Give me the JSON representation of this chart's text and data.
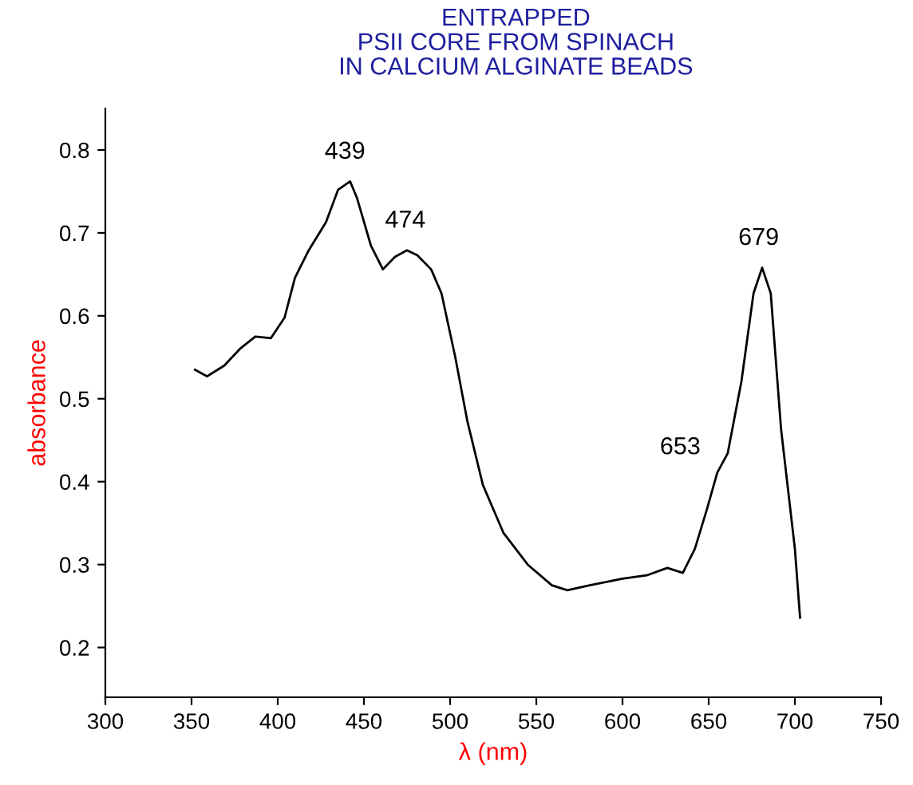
{
  "chart_data": {
    "type": "line",
    "title": "ENTRAPPED\nPSII CORE FROM SPINACH\nIN CALCIUM ALGINATE BEADS",
    "xlabel": "λ (nm)",
    "ylabel": "absorbance",
    "series": [
      {
        "color": "#000000",
        "x": [
          352,
          359,
          369,
          378,
          387,
          396,
          404,
          410,
          418,
          428,
          435,
          442,
          446,
          454,
          461,
          468,
          475,
          481,
          489,
          495,
          503,
          510,
          519,
          531,
          545,
          559,
          568,
          581,
          600,
          614,
          626,
          635,
          642,
          649,
          655,
          661,
          669,
          676,
          681,
          686,
          692,
          700,
          703
        ],
        "values": [
          0.535,
          0.527,
          0.54,
          0.56,
          0.575,
          0.573,
          0.598,
          0.646,
          0.679,
          0.713,
          0.752,
          0.762,
          0.742,
          0.685,
          0.656,
          0.671,
          0.679,
          0.673,
          0.656,
          0.627,
          0.55,
          0.473,
          0.396,
          0.338,
          0.3,
          0.275,
          0.269,
          0.275,
          0.283,
          0.287,
          0.296,
          0.29,
          0.319,
          0.367,
          0.411,
          0.434,
          0.521,
          0.627,
          0.658,
          0.627,
          0.463,
          0.319,
          0.236
        ]
      }
    ],
    "annotations": [
      {
        "text": "439",
        "x": 439,
        "y": 0.762
      },
      {
        "text": "474",
        "x": 474,
        "y": 0.679
      },
      {
        "text": "653",
        "x": 653,
        "y": 0.411
      },
      {
        "text": "679",
        "x": 679,
        "y": 0.658
      }
    ],
    "xlim": [
      300,
      750
    ],
    "ylim": [
      0.14,
      0.85
    ],
    "xticks": [
      300,
      350,
      400,
      450,
      500,
      550,
      600,
      650,
      700,
      750
    ],
    "yticks": [
      0.2,
      0.3,
      0.4,
      0.5,
      0.6,
      0.7,
      0.8
    ],
    "grid": false,
    "legend": false,
    "marker": "none",
    "line_style": "solid"
  }
}
